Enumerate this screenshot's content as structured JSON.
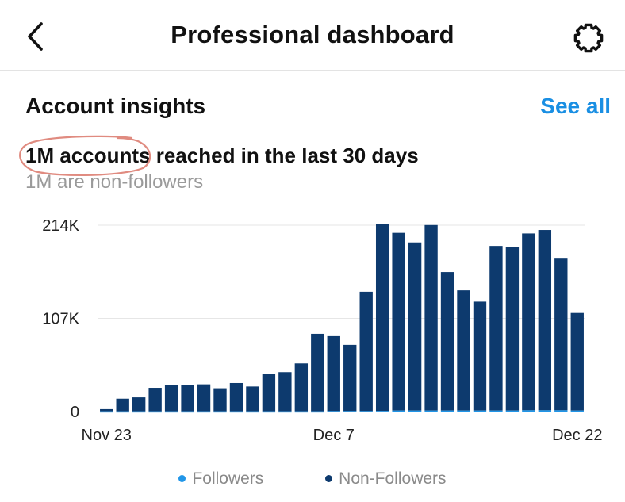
{
  "header": {
    "title": "Professional dashboard",
    "back_icon": "chevron-left-icon",
    "settings_icon": "gear-icon"
  },
  "insights": {
    "title": "Account insights",
    "see_all": "See all",
    "reach_highlight": "1M accounts",
    "reach_rest": " reached in the last 30 days",
    "non_followers_note": "1M are non-followers"
  },
  "colors": {
    "accent": "#1a8fe3",
    "non_followers": "#0d3a6e",
    "followers": "#2196e8",
    "circle": "#e08b80"
  },
  "chart_data": {
    "type": "bar",
    "stacked": true,
    "y_ticks": [
      {
        "value": 0,
        "label": "0"
      },
      {
        "value": 107000,
        "label": "107K"
      },
      {
        "value": 214000,
        "label": "214K"
      }
    ],
    "ylim": [
      0,
      214000
    ],
    "x_labels": [
      {
        "index": 0,
        "label": "Nov 23"
      },
      {
        "index": 14,
        "label": "Dec 7"
      },
      {
        "index": 29,
        "label": "Dec 22"
      }
    ],
    "series": [
      {
        "name": "Followers",
        "color": "#2196e8",
        "values": [
          300,
          300,
          300,
          300,
          300,
          300,
          300,
          300,
          300,
          300,
          300,
          300,
          300,
          300,
          600,
          600,
          600,
          700,
          1200,
          1200,
          1200,
          1200,
          1200,
          1200,
          1200,
          1200,
          1500,
          1500,
          1500,
          1200
        ]
      },
      {
        "name": "Non-Followers",
        "color": "#0d3a6e",
        "values": [
          2500,
          14500,
          16000,
          27000,
          30000,
          30000,
          31000,
          26500,
          32500,
          28500,
          43000,
          45000,
          55000,
          89000,
          86000,
          76000,
          137000,
          215000,
          204000,
          193000,
          213000,
          159000,
          138000,
          125000,
          189000,
          188000,
          203000,
          207000,
          175000,
          112000
        ]
      }
    ],
    "legend": [
      "Followers",
      "Non-Followers"
    ],
    "grid": true
  }
}
